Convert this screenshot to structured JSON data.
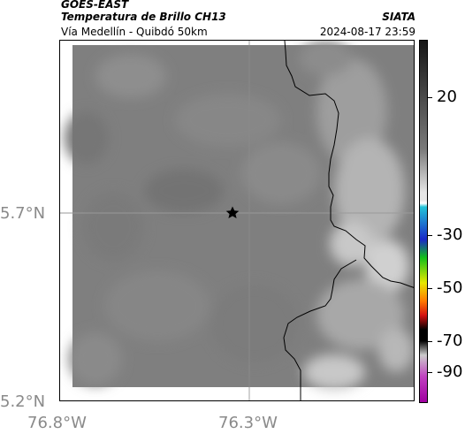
{
  "header": {
    "satellite": "GOES-EAST",
    "product": "Temperatura de Brillo CH13",
    "region": "Vía Medellín - Quibdó 50km",
    "org": "SIATA",
    "datetime": "2024-08-17 23:59"
  },
  "map": {
    "lat_ticks": [
      "5.7°N",
      "5.2°N"
    ],
    "lon_ticks": [
      "76.8°W",
      "76.3°W"
    ],
    "marker": "star-marker",
    "grid": "crosshair at marker"
  },
  "colorbar": {
    "labels": [
      "20",
      "-30",
      "-50",
      "-70",
      "-90"
    ],
    "colors": {
      "top": "#161616",
      "mid_gray": "#7a7a7a",
      "light": "#e6e6e6",
      "cyan": "#22c4d8",
      "blue": "#1a28c8",
      "green": "#12c01a",
      "yellow": "#e8e800",
      "orange": "#ff7a00",
      "red": "#d41010",
      "black": "#000000",
      "magenta": "#c040c0"
    }
  }
}
